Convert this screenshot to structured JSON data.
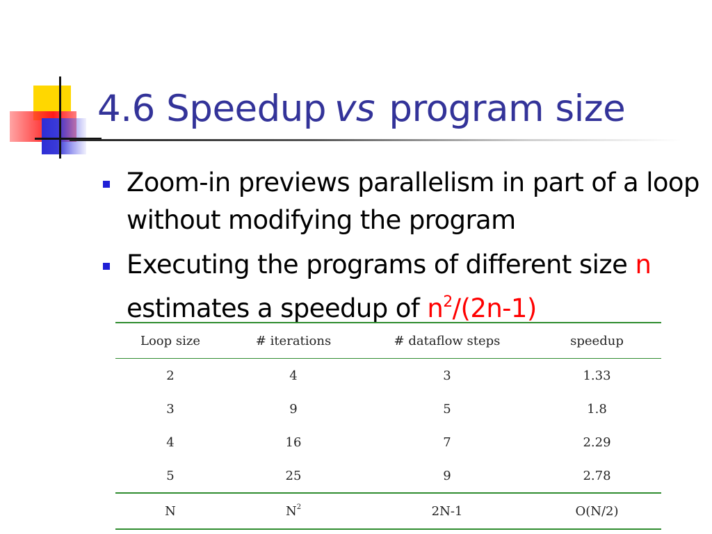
{
  "title": {
    "number": "4.6",
    "part1": "Speedup",
    "vs": "vs",
    "part2": "program size"
  },
  "bullets": [
    {
      "text": "Zoom-in previews parallelism in part of a loop without modifying the program"
    },
    {
      "text_before": "Executing the programs of different size",
      "highlight_n": "n",
      "text_middle": "estimates a speedup of",
      "formula_base": "n",
      "formula_exp": "2",
      "formula_rest": "/(2n-1)"
    }
  ],
  "table": {
    "headers": [
      "Loop size",
      "# iterations",
      "# dataflow steps",
      "speedup"
    ],
    "rows": [
      [
        "2",
        "4",
        "3",
        "1.33"
      ],
      [
        "3",
        "9",
        "5",
        "1.8"
      ],
      [
        "4",
        "16",
        "7",
        "2.29"
      ],
      [
        "5",
        "25",
        "9",
        "2.78"
      ]
    ],
    "footer": {
      "loop_size": "N",
      "iterations_base": "N",
      "iterations_exp": "2",
      "steps": "2N-1",
      "speedup": "O(N/2)"
    }
  },
  "colors": {
    "title": "#333399",
    "highlight": "#ff0000",
    "bullet_marker": "#1f1fd6",
    "table_rule": "#2e8b2e"
  }
}
